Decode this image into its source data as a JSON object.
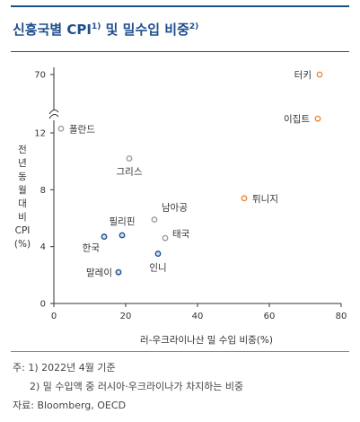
{
  "title": {
    "text": "신흥국별 CPI",
    "sup1": "1)",
    "text2": " 및 밀수입 비중",
    "sup2": "2)"
  },
  "notes": {
    "note1": "주: 1) 2022년 4월 기준",
    "note2": "2) 밀 수입액 중 러시아·우크라이나가 차지하는 비중",
    "source": "자료: Bloomberg, OECD"
  },
  "colors": {
    "title": "#1f4e8c",
    "orange": "#e8883a",
    "gray": "#9a9a9a",
    "blue": "#1f4e8c"
  },
  "chart_data": {
    "type": "scatter",
    "xlabel": "러-우크라이나산 밀 수입 비중(%)",
    "ylabel": [
      "전",
      "년",
      "동",
      "월",
      "대",
      "비",
      "CPI",
      "(%)"
    ],
    "xlim": [
      0,
      80
    ],
    "ylim": [
      0,
      13
    ],
    "y_axis_break": true,
    "x_ticks": [
      "0",
      "20",
      "40",
      "60",
      "80"
    ],
    "y_ticks": [
      "0",
      "4",
      "8",
      "12",
      "70"
    ],
    "grid": false,
    "points": [
      {
        "label": "터키",
        "x": 74,
        "y": 70,
        "group": "orange"
      },
      {
        "label": "이집트",
        "x": 73.5,
        "y": 13,
        "group": "orange"
      },
      {
        "label": "튀니지",
        "x": 53,
        "y": 7.4,
        "group": "orange"
      },
      {
        "label": "폴란드",
        "x": 2,
        "y": 12.3,
        "group": "gray"
      },
      {
        "label": "그리스",
        "x": 21,
        "y": 10.2,
        "group": "gray"
      },
      {
        "label": "남아공",
        "x": 28,
        "y": 5.9,
        "group": "gray"
      },
      {
        "label": "태국",
        "x": 31,
        "y": 4.6,
        "group": "gray"
      },
      {
        "label": "필리핀",
        "x": 19,
        "y": 4.8,
        "group": "blue"
      },
      {
        "label": "한국",
        "x": 14,
        "y": 4.7,
        "group": "blue"
      },
      {
        "label": "인니",
        "x": 29,
        "y": 3.5,
        "group": "blue"
      },
      {
        "label": "말레이",
        "x": 18,
        "y": 2.2,
        "group": "blue"
      }
    ]
  }
}
